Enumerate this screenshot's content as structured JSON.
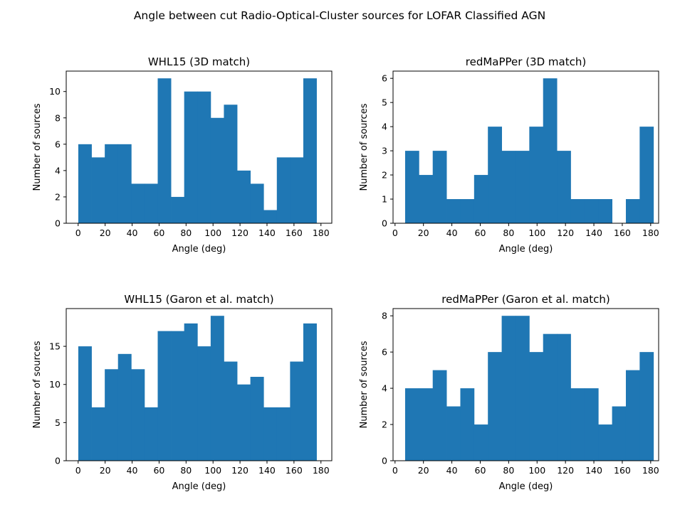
{
  "figure": {
    "title": "Angle between cut Radio-Optical-Cluster sources for LOFAR Classified AGN"
  },
  "colors": {
    "bar": "#1f77b4",
    "axes": "#000000",
    "background": "#ffffff"
  },
  "chart_data": [
    {
      "type": "bar",
      "title": "WHL15 (3D match)",
      "xlabel": "Angle (deg)",
      "ylabel": "Number of sources",
      "xlim": [
        -8.85,
        188.05
      ],
      "ylim": [
        0,
        11.55
      ],
      "xticks": [
        0,
        20,
        40,
        60,
        80,
        100,
        120,
        140,
        160,
        180
      ],
      "yticks": [
        0,
        2,
        4,
        6,
        8,
        10
      ],
      "bin_edges": [
        0.1,
        9.91,
        19.73,
        29.54,
        39.35,
        49.16,
        58.98,
        68.79,
        78.6,
        88.41,
        98.23,
        108.04,
        117.85,
        127.66,
        137.48,
        147.29,
        157.1,
        166.91,
        176.73
      ],
      "counts": [
        6,
        5,
        6,
        6,
        3,
        3,
        11,
        2,
        10,
        10,
        8,
        9,
        4,
        3,
        1,
        5,
        5,
        11
      ]
    },
    {
      "type": "bar",
      "title": "redMaPPer (3D match)",
      "xlabel": "Angle (deg)",
      "ylabel": "Number of sources",
      "xlim": [
        -1.4,
        185.6
      ],
      "ylim": [
        0,
        6.3
      ],
      "xticks": [
        0,
        20,
        40,
        60,
        80,
        100,
        120,
        140,
        160,
        180
      ],
      "yticks": [
        0,
        1,
        2,
        3,
        4,
        5,
        6
      ],
      "bin_edges": [
        7.1,
        16.81,
        26.53,
        36.24,
        45.96,
        55.67,
        65.38,
        75.1,
        84.81,
        94.53,
        104.24,
        113.96,
        123.67,
        133.38,
        143.1,
        152.81,
        162.53,
        172.24,
        181.96
      ],
      "counts": [
        3,
        2,
        3,
        1,
        1,
        2,
        4,
        3,
        3,
        4,
        6,
        3,
        1,
        1,
        1,
        0,
        1,
        4
      ]
    },
    {
      "type": "bar",
      "title": "WHL15 (Garon et al. match)",
      "xlabel": "Angle (deg)",
      "ylabel": "Number of sources",
      "xlim": [
        -8.85,
        188.05
      ],
      "ylim": [
        0,
        19.95
      ],
      "xticks": [
        0,
        20,
        40,
        60,
        80,
        100,
        120,
        140,
        160,
        180
      ],
      "yticks": [
        0,
        5,
        10,
        15
      ],
      "bin_edges": [
        0.1,
        9.91,
        19.73,
        29.54,
        39.35,
        49.16,
        58.98,
        68.79,
        78.6,
        88.41,
        98.23,
        108.04,
        117.85,
        127.66,
        137.48,
        147.29,
        157.1,
        166.91,
        176.73
      ],
      "counts": [
        15,
        7,
        12,
        14,
        12,
        7,
        17,
        17,
        18,
        15,
        19,
        13,
        10,
        11,
        7,
        7,
        13,
        18
      ]
    },
    {
      "type": "bar",
      "title": "redMaPPer (Garon et al. match)",
      "xlabel": "Angle (deg)",
      "ylabel": "Number of sources",
      "xlim": [
        -1.4,
        185.6
      ],
      "ylim": [
        0,
        8.4
      ],
      "xticks": [
        0,
        20,
        40,
        60,
        80,
        100,
        120,
        140,
        160,
        180
      ],
      "yticks": [
        0,
        2,
        4,
        6,
        8
      ],
      "bin_edges": [
        7.1,
        16.81,
        26.53,
        36.24,
        45.96,
        55.67,
        65.38,
        75.1,
        84.81,
        94.53,
        104.24,
        113.96,
        123.67,
        133.38,
        143.1,
        152.81,
        162.53,
        172.24,
        181.96
      ],
      "counts": [
        4,
        4,
        5,
        3,
        4,
        2,
        6,
        8,
        8,
        6,
        7,
        7,
        4,
        4,
        2,
        3,
        5,
        6
      ]
    }
  ]
}
